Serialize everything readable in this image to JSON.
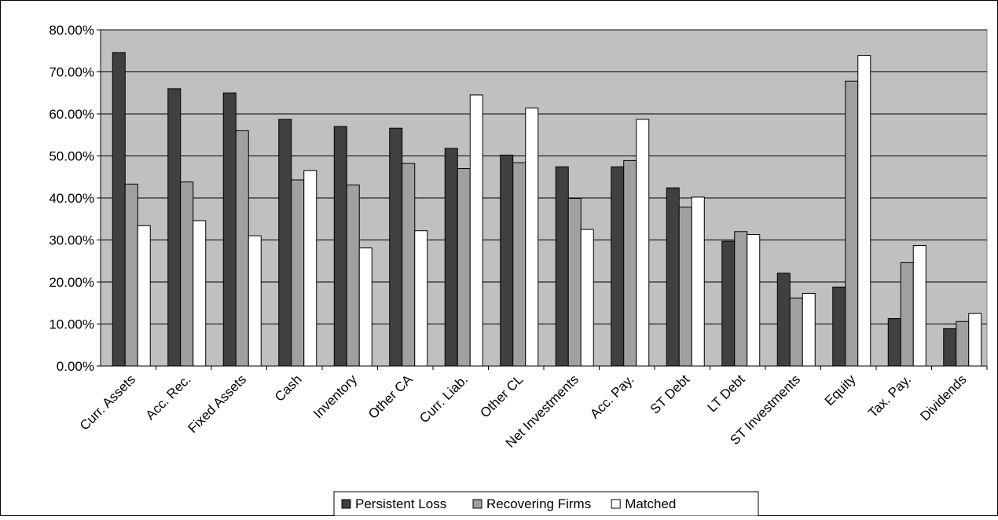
{
  "chart_data": {
    "type": "bar",
    "title": "",
    "xlabel": "",
    "ylabel": "",
    "ylim": [
      0,
      0.8
    ],
    "y_ticks": [
      "0.00%",
      "10.00%",
      "20.00%",
      "30.00%",
      "40.00%",
      "50.00%",
      "60.00%",
      "70.00%",
      "80.00%"
    ],
    "grid": "horizontal",
    "plot_background": "#c0c0c0",
    "legend_position": "bottom",
    "categories": [
      "Curr. Assets",
      "Acc. Rec.",
      "Fixed Assets",
      "Cash",
      "Inventory",
      "Other CA",
      "Curr. Liab.",
      "Other CL",
      "Net Investments",
      "Acc. Pay.",
      "ST Debt",
      "LT Debt",
      "ST Investments",
      "Equity",
      "Tax. Pay.",
      "Dividends"
    ],
    "series": [
      {
        "name": "Persistent Loss",
        "color": "#404040",
        "values": [
          0.746,
          0.66,
          0.65,
          0.587,
          0.57,
          0.566,
          0.518,
          0.502,
          0.474,
          0.474,
          0.424,
          0.297,
          0.221,
          0.188,
          0.113,
          0.089
        ]
      },
      {
        "name": "Recovering Firms",
        "color": "#a0a0a0",
        "values": [
          0.433,
          0.438,
          0.56,
          0.443,
          0.431,
          0.482,
          0.47,
          0.484,
          0.399,
          0.489,
          0.378,
          0.32,
          0.162,
          0.678,
          0.246,
          0.106
        ]
      },
      {
        "name": "Matched",
        "color": "#ffffff",
        "values": [
          0.334,
          0.346,
          0.31,
          0.465,
          0.281,
          0.322,
          0.645,
          0.614,
          0.325,
          0.587,
          0.402,
          0.313,
          0.173,
          0.739,
          0.287,
          0.125
        ]
      }
    ]
  }
}
